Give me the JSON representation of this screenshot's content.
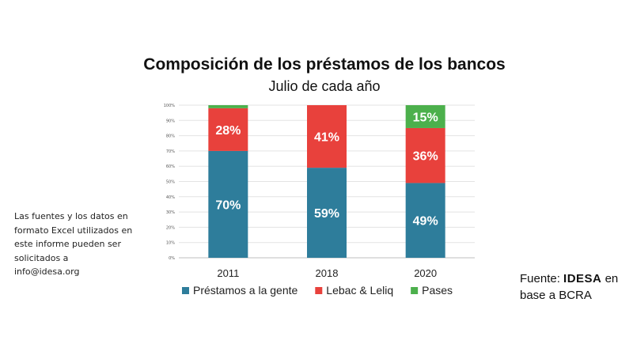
{
  "chart_data": {
    "type": "bar",
    "stacked": true,
    "title": "Composición de los préstamos de los bancos",
    "subtitle": "Julio de cada año",
    "categories": [
      "2011",
      "2018",
      "2020"
    ],
    "series": [
      {
        "name": "Préstamos a la gente",
        "color": "#2e7d9b",
        "values": [
          70,
          59,
          49
        ],
        "labels": [
          "70%",
          "59%",
          "49%"
        ]
      },
      {
        "name": "Lebac & Leliq",
        "color": "#e8413c",
        "values": [
          28,
          41,
          36
        ],
        "labels": [
          "28%",
          "41%",
          "36%"
        ]
      },
      {
        "name": "Pases",
        "color": "#4cb04c",
        "values": [
          2,
          0,
          15
        ],
        "labels": [
          "",
          "",
          "15%"
        ]
      }
    ],
    "ylim": [
      0,
      100
    ],
    "yticks": [
      "0%",
      "10%",
      "20%",
      "30%",
      "40%",
      "50%",
      "60%",
      "70%",
      "80%",
      "90%",
      "100%"
    ],
    "grid": true,
    "legend": "bottom"
  },
  "note": "Las fuentes y los datos en formato Excel utilizados en este informe pueden ser solicitados a info@idesa.org",
  "source": {
    "prefix": "Fuente:",
    "brand": "IDESA",
    "suffix": "en base a BCRA"
  }
}
